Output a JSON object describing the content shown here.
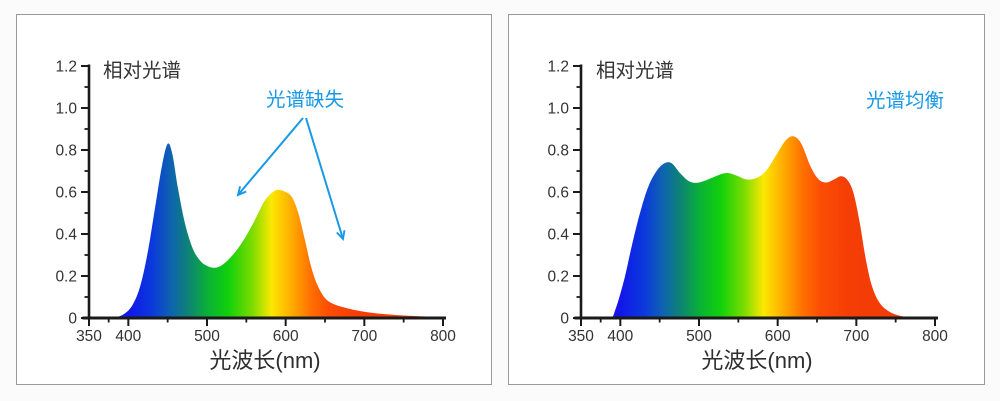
{
  "colors": {
    "annotation_blue": "#1899e6",
    "axis": "#1a1a1a",
    "tick_text": "#333333",
    "panel_border": "#9a9a9a",
    "page_background": "#fbfbfb",
    "panel_background": "#ffffff"
  },
  "chart_data": [
    {
      "type": "area",
      "title": "相对光谱",
      "xlabel": "光波长(nm)",
      "ylabel": "",
      "annotation": "光谱缺失",
      "legend": "none",
      "grid": false,
      "xlim": [
        350,
        800
      ],
      "ylim": [
        0,
        1.2
      ],
      "x_tick_values": [
        350,
        400,
        500,
        600,
        700,
        800
      ],
      "x_tick_labels": [
        "350",
        "400",
        "500",
        "600",
        "700",
        "800"
      ],
      "y_tick_values": [
        0,
        0.2,
        0.4,
        0.6,
        0.8,
        1.0,
        1.2
      ],
      "y_tick_labels": [
        "0",
        "0.2",
        "0.4",
        "0.6",
        "0.8",
        "1.0",
        "1.2"
      ],
      "series": [
        {
          "x": [
            383,
            395,
            405,
            415,
            425,
            435,
            443,
            450,
            456,
            463,
            472,
            482,
            492,
            502,
            512,
            522,
            535,
            548,
            560,
            572,
            582,
            590,
            600,
            608,
            616,
            624,
            632,
            640,
            650,
            662,
            680,
            700,
            730,
            770,
            800
          ],
          "y": [
            0,
            0.02,
            0.06,
            0.15,
            0.32,
            0.55,
            0.73,
            0.83,
            0.78,
            0.62,
            0.45,
            0.33,
            0.27,
            0.245,
            0.24,
            0.26,
            0.31,
            0.38,
            0.46,
            0.55,
            0.595,
            0.61,
            0.6,
            0.575,
            0.5,
            0.38,
            0.25,
            0.16,
            0.095,
            0.065,
            0.045,
            0.03,
            0.017,
            0.008,
            0.005
          ]
        }
      ],
      "gradient_stops": [
        {
          "nm": 350,
          "color": "#2a18d8"
        },
        {
          "nm": 400,
          "color": "#1216e8"
        },
        {
          "nm": 430,
          "color": "#0b39dd"
        },
        {
          "nm": 455,
          "color": "#0e64ae"
        },
        {
          "nm": 478,
          "color": "#0d8670"
        },
        {
          "nm": 500,
          "color": "#0ab038"
        },
        {
          "nm": 528,
          "color": "#12d10a"
        },
        {
          "nm": 558,
          "color": "#7edc00"
        },
        {
          "nm": 582,
          "color": "#fce800"
        },
        {
          "nm": 608,
          "color": "#ffaa00"
        },
        {
          "nm": 632,
          "color": "#ff7000"
        },
        {
          "nm": 655,
          "color": "#fb4d04"
        },
        {
          "nm": 690,
          "color": "#f53d06"
        },
        {
          "nm": 800,
          "color": "#f23a05"
        }
      ]
    },
    {
      "type": "area",
      "title": "相对光谱",
      "xlabel": "光波长(nm)",
      "ylabel": "",
      "annotation": "光谱均衡",
      "legend": "none",
      "grid": false,
      "xlim": [
        350,
        800
      ],
      "ylim": [
        0,
        1.2
      ],
      "x_tick_values": [
        350,
        400,
        500,
        600,
        700,
        800
      ],
      "x_tick_labels": [
        "350",
        "400",
        "500",
        "600",
        "700",
        "800"
      ],
      "y_tick_values": [
        0,
        0.2,
        0.4,
        0.6,
        0.8,
        1.0,
        1.2
      ],
      "y_tick_labels": [
        "0",
        "0.2",
        "0.4",
        "0.6",
        "0.8",
        "1.0",
        "1.2"
      ],
      "series": [
        {
          "x": [
            390,
            398,
            406,
            415,
            425,
            436,
            448,
            458,
            466,
            476,
            488,
            500,
            515,
            528,
            538,
            550,
            560,
            572,
            585,
            598,
            610,
            620,
            630,
            642,
            652,
            662,
            672,
            680,
            688,
            696,
            704,
            712,
            720,
            730,
            742,
            756,
            772
          ],
          "y": [
            0,
            0.09,
            0.2,
            0.35,
            0.5,
            0.63,
            0.71,
            0.74,
            0.735,
            0.69,
            0.65,
            0.645,
            0.665,
            0.685,
            0.69,
            0.675,
            0.66,
            0.665,
            0.7,
            0.775,
            0.845,
            0.865,
            0.83,
            0.72,
            0.66,
            0.645,
            0.66,
            0.675,
            0.66,
            0.6,
            0.46,
            0.28,
            0.15,
            0.07,
            0.03,
            0.01,
            0.002
          ]
        }
      ],
      "gradient_stops": [
        {
          "nm": 350,
          "color": "#2a18d8"
        },
        {
          "nm": 400,
          "color": "#1216e8"
        },
        {
          "nm": 430,
          "color": "#0b39dd"
        },
        {
          "nm": 455,
          "color": "#0e64ae"
        },
        {
          "nm": 478,
          "color": "#0d8670"
        },
        {
          "nm": 500,
          "color": "#0ab038"
        },
        {
          "nm": 528,
          "color": "#12d10a"
        },
        {
          "nm": 558,
          "color": "#7edc00"
        },
        {
          "nm": 582,
          "color": "#fce800"
        },
        {
          "nm": 608,
          "color": "#ffaa00"
        },
        {
          "nm": 632,
          "color": "#ff7000"
        },
        {
          "nm": 655,
          "color": "#fb4d04"
        },
        {
          "nm": 690,
          "color": "#f53d06"
        },
        {
          "nm": 800,
          "color": "#f23a05"
        }
      ]
    }
  ]
}
